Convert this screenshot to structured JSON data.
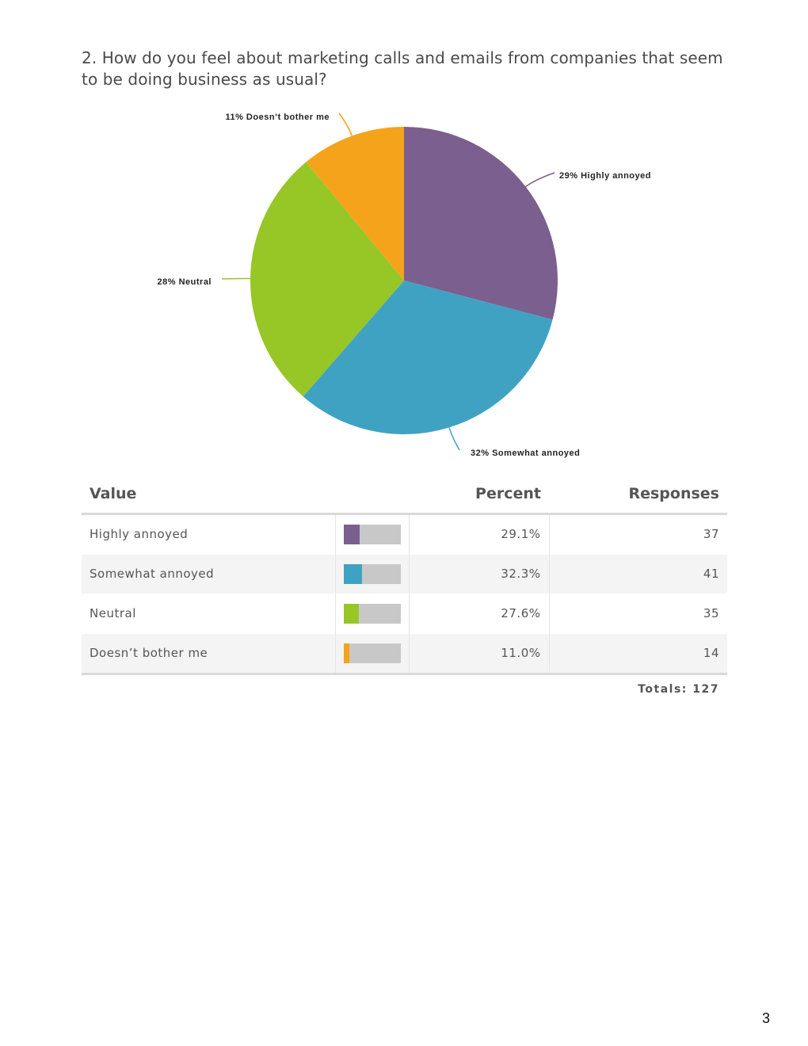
{
  "question": "2. How do you feel about marketing calls and emails from companies that seem to be doing business as usual?",
  "chart_data": {
    "type": "pie",
    "slices": [
      {
        "label": "29% Highly annoyed",
        "name": "Highly annoyed",
        "value": 29.1,
        "color": "#7b5f8f"
      },
      {
        "label": "32% Somewhat annoyed",
        "name": "Somewhat annoyed",
        "value": 32.3,
        "color": "#40a2c3"
      },
      {
        "label": "28% Neutral",
        "name": "Neutral",
        "value": 27.6,
        "color": "#97c627"
      },
      {
        "label": "11% Doesn’t bother me",
        "name": "Doesn’t bother me",
        "value": 11.0,
        "color": "#f5a31a"
      }
    ]
  },
  "table": {
    "headers": {
      "value": "Value",
      "percent": "Percent",
      "responses": "Responses"
    },
    "rows": [
      {
        "value": "Highly annoyed",
        "percent": "29.1%",
        "fraction": 0.291,
        "responses": "37",
        "color": "#7b5f8f"
      },
      {
        "value": "Somewhat annoyed",
        "percent": "32.3%",
        "fraction": 0.323,
        "responses": "41",
        "color": "#40a2c3"
      },
      {
        "value": "Neutral",
        "percent": "27.6%",
        "fraction": 0.276,
        "responses": "35",
        "color": "#97c627"
      },
      {
        "value": "Doesn’t bother me",
        "percent": "11.0%",
        "fraction": 0.11,
        "responses": "14",
        "color": "#f5a31a"
      }
    ],
    "totals": "Totals: 127"
  },
  "page_number": "3"
}
